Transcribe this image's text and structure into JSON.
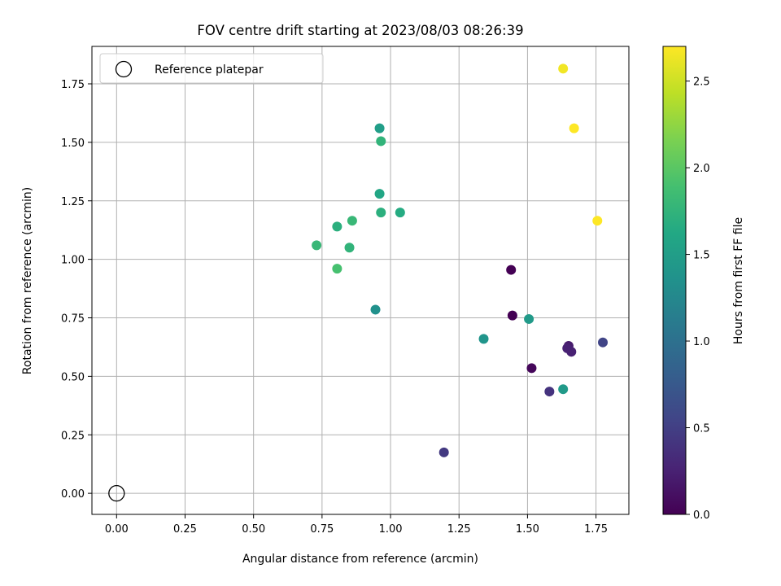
{
  "chart_data": {
    "type": "scatter",
    "title": "FOV centre drift starting at 2023/08/03 08:26:39",
    "xlabel": "Angular distance from reference (arcmin)",
    "ylabel": "Rotation from reference (arcmin)",
    "xlim": [
      -0.09,
      1.87
    ],
    "ylim": [
      -0.09,
      1.91
    ],
    "xticks": [
      0.0,
      0.25,
      0.5,
      0.75,
      1.0,
      1.25,
      1.5,
      1.75
    ],
    "xtick_labels": [
      "0.00",
      "0.25",
      "0.50",
      "0.75",
      "1.00",
      "1.25",
      "1.50",
      "1.75"
    ],
    "yticks": [
      0.0,
      0.25,
      0.5,
      0.75,
      1.0,
      1.25,
      1.5,
      1.75
    ],
    "ytick_labels": [
      "0.00",
      "0.25",
      "0.50",
      "0.75",
      "1.00",
      "1.25",
      "1.50",
      "1.75"
    ],
    "grid": true,
    "legend": {
      "placement": "upper-left",
      "entries": [
        "Reference platepar"
      ]
    },
    "reference_point": {
      "x": 0.0,
      "y": 0.0,
      "label": "Reference platepar"
    },
    "colorbar": {
      "label": "Hours from first FF file",
      "colormap": "viridis",
      "range": [
        0.0,
        2.7
      ],
      "ticks": [
        0.0,
        0.5,
        1.0,
        1.5,
        2.0,
        2.5
      ],
      "tick_labels": [
        "0.0",
        "0.5",
        "1.0",
        "1.5",
        "2.0",
        "2.5"
      ]
    },
    "points": [
      {
        "x": 1.44,
        "y": 0.955,
        "hours": 0.0
      },
      {
        "x": 1.445,
        "y": 0.76,
        "hours": 0.0
      },
      {
        "x": 1.515,
        "y": 0.535,
        "hours": 0.05
      },
      {
        "x": 1.65,
        "y": 0.63,
        "hours": 0.2
      },
      {
        "x": 1.645,
        "y": 0.62,
        "hours": 0.25
      },
      {
        "x": 1.66,
        "y": 0.605,
        "hours": 0.25
      },
      {
        "x": 1.58,
        "y": 0.435,
        "hours": 0.4
      },
      {
        "x": 1.195,
        "y": 0.175,
        "hours": 0.45
      },
      {
        "x": 1.775,
        "y": 0.645,
        "hours": 0.55
      },
      {
        "x": 0.945,
        "y": 0.785,
        "hours": 1.35
      },
      {
        "x": 1.34,
        "y": 0.66,
        "hours": 1.4
      },
      {
        "x": 1.505,
        "y": 0.745,
        "hours": 1.45
      },
      {
        "x": 1.63,
        "y": 0.445,
        "hours": 1.45
      },
      {
        "x": 0.96,
        "y": 1.56,
        "hours": 1.5
      },
      {
        "x": 0.96,
        "y": 1.28,
        "hours": 1.6
      },
      {
        "x": 1.035,
        "y": 1.2,
        "hours": 1.65
      },
      {
        "x": 0.965,
        "y": 1.2,
        "hours": 1.7
      },
      {
        "x": 0.965,
        "y": 1.505,
        "hours": 1.75
      },
      {
        "x": 0.805,
        "y": 1.14,
        "hours": 1.7
      },
      {
        "x": 0.85,
        "y": 1.05,
        "hours": 1.75
      },
      {
        "x": 0.73,
        "y": 1.06,
        "hours": 1.8
      },
      {
        "x": 0.86,
        "y": 1.165,
        "hours": 1.8
      },
      {
        "x": 0.805,
        "y": 0.96,
        "hours": 1.9
      },
      {
        "x": 1.63,
        "y": 1.815,
        "hours": 2.65
      },
      {
        "x": 1.67,
        "y": 1.56,
        "hours": 2.7
      },
      {
        "x": 1.755,
        "y": 1.165,
        "hours": 2.7
      }
    ]
  }
}
